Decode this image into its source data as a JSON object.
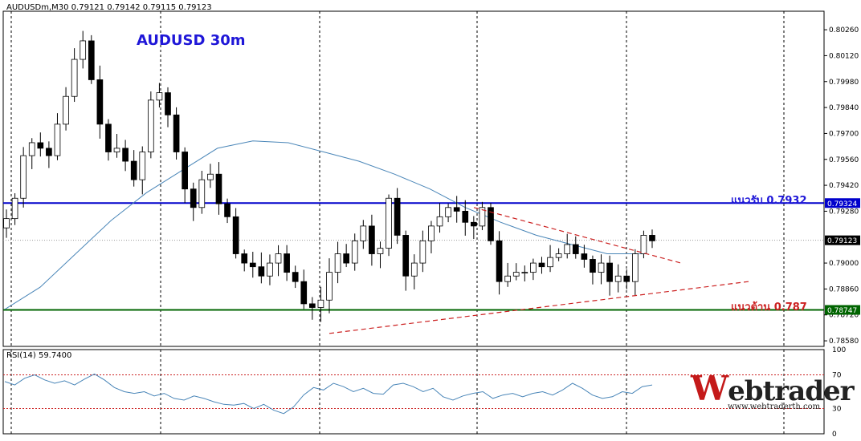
{
  "header": {
    "symbol_line": "AUDUSDm,M30  0.79121 0.79142 0.79115 0.79123",
    "chart_title": "AUDUSD 30m"
  },
  "levels": {
    "resistance_label": "แนวรับ 0.7932",
    "support_label": "แนวต้าน 0.787",
    "resistance_price": "0.79324",
    "support_price": "0.78747",
    "current_price": "0.79123"
  },
  "rsi": {
    "label": "RSI(14) 59.7400",
    "scale_labels": [
      "100",
      "70",
      "30",
      "0"
    ]
  },
  "logo": {
    "brand_first": "W",
    "brand_rest": "ebtrader",
    "url": "www.webtraderth.com"
  },
  "colors": {
    "resistance_line": "#0000cc",
    "support_line": "#006400",
    "trendline": "#cc2222",
    "moving_average": "#4a86b8",
    "rsi_line": "#4a86b8",
    "title": "#1f17d8",
    "resistance_label": "#1f17d8",
    "support_label": "#cc2222"
  },
  "chart_data": {
    "type": "candlestick",
    "title": "AUDUSD 30m",
    "symbol": "AUDUSDm",
    "timeframe": "M30",
    "ylim": [
      0.7855,
      0.8036
    ],
    "price_ticks": [
      "0.80260",
      "0.80120",
      "0.79980",
      "0.79840",
      "0.79700",
      "0.79560",
      "0.79420",
      "0.79280",
      "0.79000",
      "0.78860",
      "0.78720",
      "0.78580"
    ],
    "close_path": [
      0.7924,
      0.7935,
      0.7958,
      0.7965,
      0.7962,
      0.7958,
      0.7975,
      0.799,
      0.801,
      0.802,
      0.7999,
      0.7975,
      0.796,
      0.7962,
      0.7955,
      0.7945,
      0.796,
      0.7988,
      0.7992,
      0.798,
      0.796,
      0.794,
      0.793,
      0.7945,
      0.7948,
      0.7932,
      0.7925,
      0.7905,
      0.79,
      0.7898,
      0.7893,
      0.79,
      0.7905,
      0.7895,
      0.789,
      0.7878,
      0.7876,
      0.788,
      0.7895,
      0.7905,
      0.79,
      0.7912,
      0.792,
      0.7905,
      0.7908,
      0.7935,
      0.7915,
      0.7893,
      0.79,
      0.7912,
      0.792,
      0.7925,
      0.793,
      0.7928,
      0.7922,
      0.792,
      0.793,
      0.7912,
      0.789,
      0.7893,
      0.7895,
      0.7895,
      0.79,
      0.7898,
      0.7903,
      0.7905,
      0.791,
      0.7905,
      0.7902,
      0.7895,
      0.79,
      0.789,
      0.7893,
      0.789,
      0.7905,
      0.7915,
      0.7912
    ],
    "moving_average": [
      0.7875,
      0.7887,
      0.7905,
      0.7923,
      0.7938,
      0.795,
      0.7962,
      0.7966,
      0.7965,
      0.796,
      0.7955,
      0.7948,
      0.794,
      0.793,
      0.7922,
      0.7915,
      0.791,
      0.7905,
      0.7905
    ],
    "resistance_line": 0.79324,
    "support_line": 0.78747,
    "trendline_upper": [
      [
        0.793,
        0
      ],
      [
        0.79,
        1
      ]
    ],
    "trendline_lower": [
      [
        0.7862,
        0
      ],
      [
        0.789,
        1
      ]
    ],
    "rsi_series": [
      62,
      58,
      66,
      70,
      64,
      60,
      63,
      58,
      65,
      71,
      64,
      55,
      50,
      48,
      50,
      45,
      48,
      42,
      40,
      45,
      42,
      38,
      35,
      34,
      36,
      30,
      35,
      28,
      24,
      32,
      46,
      55,
      52,
      60,
      56,
      50,
      54,
      48,
      47,
      58,
      60,
      56,
      50,
      54,
      44,
      40,
      45,
      48,
      50,
      42,
      46,
      48,
      44,
      48,
      50,
      46,
      52,
      60,
      54,
      46,
      42,
      44,
      50,
      48,
      56,
      58
    ],
    "rsi_levels": [
      70,
      30
    ]
  }
}
